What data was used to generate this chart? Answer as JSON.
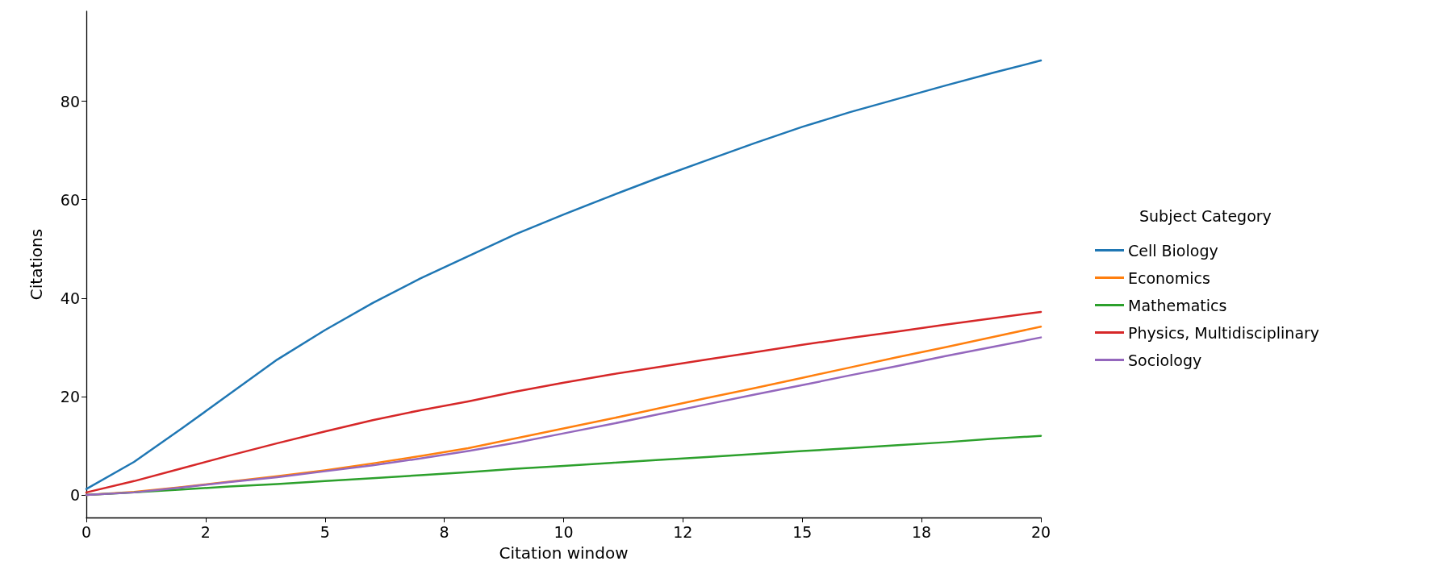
{
  "chart_data": {
    "type": "line",
    "xlabel": "Citation window",
    "ylabel": "Citations",
    "legend_title": "Subject Category",
    "legend": "right",
    "grid": false,
    "marker": "none",
    "line_style": "solid",
    "x": [
      0,
      1,
      2,
      3,
      4,
      5,
      6,
      7,
      8,
      9,
      10,
      11,
      12,
      13,
      14,
      15,
      16,
      17,
      18,
      19,
      20
    ],
    "xlim": [
      0,
      20
    ],
    "xticks": [
      0,
      {
        "value": 2.5,
        "label": "2"
      },
      5,
      {
        "value": 7.5,
        "label": "8"
      },
      10,
      {
        "value": 12.5,
        "label": "12"
      },
      15,
      {
        "value": 17.5,
        "label": "18"
      },
      20
    ],
    "ylim": [
      -4.6,
      98.3
    ],
    "yticks": [
      0,
      20,
      40,
      60,
      80
    ],
    "series": [
      {
        "name": "Cell Biology",
        "color": "#1f77b4",
        "values": [
          1.2,
          6.7,
          13.5,
          20.5,
          27.5,
          33.5,
          39,
          44,
          48.5,
          53,
          57,
          60.8,
          64.5,
          68,
          71.5,
          74.8,
          77.8,
          80.5,
          83.2,
          85.8,
          88.3
        ]
      },
      {
        "name": "Economics",
        "color": "#ff7f0e",
        "values": [
          0,
          0.6,
          1.6,
          2.7,
          3.8,
          5,
          6.4,
          7.9,
          9.5,
          11.5,
          13.5,
          15.5,
          17.6,
          19.7,
          21.7,
          23.8,
          25.9,
          28,
          30,
          32.1,
          34.2
        ]
      },
      {
        "name": "Mathematics",
        "color": "#2ca02c",
        "values": [
          0,
          0.5,
          1.1,
          1.7,
          2.2,
          2.8,
          3.4,
          4,
          4.6,
          5.3,
          5.9,
          6.5,
          7.1,
          7.7,
          8.3,
          8.9,
          9.5,
          10.1,
          10.7,
          11.4,
          12
        ]
      },
      {
        "name": "Physics, Multidisciplinary",
        "color": "#d62728",
        "values": [
          0.5,
          2.8,
          5.4,
          8,
          10.5,
          12.9,
          15.2,
          17.2,
          19,
          21,
          22.8,
          24.5,
          26,
          27.5,
          29,
          30.5,
          31.9,
          33.2,
          34.6,
          35.9,
          37.2
        ]
      },
      {
        "name": "Sociology",
        "color": "#9467bd",
        "values": [
          0,
          0.5,
          1.5,
          2.6,
          3.6,
          4.8,
          6,
          7.4,
          8.9,
          10.6,
          12.5,
          14.4,
          16.4,
          18.4,
          20.4,
          22.3,
          24.3,
          26.2,
          28.2,
          30.1,
          32
        ]
      }
    ]
  }
}
